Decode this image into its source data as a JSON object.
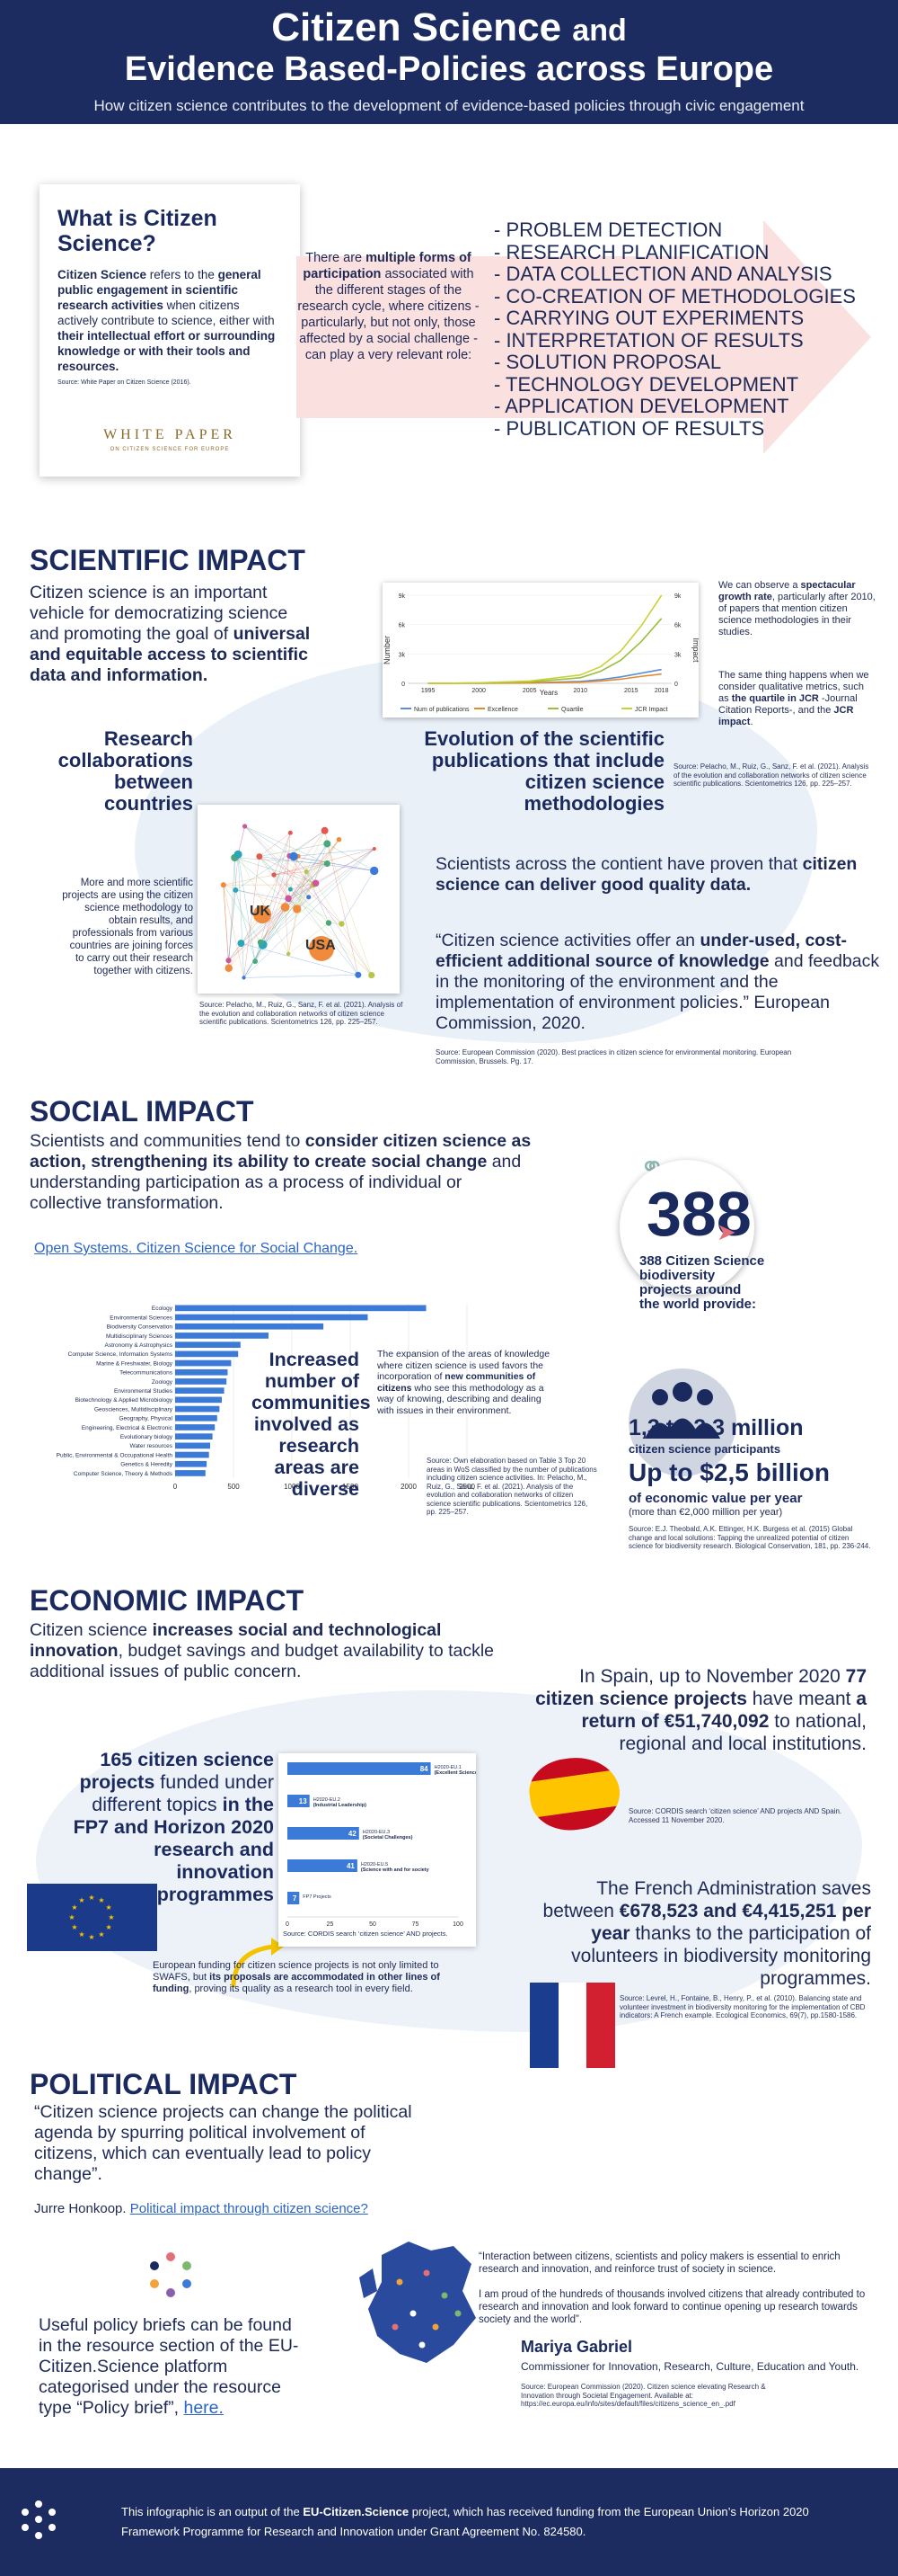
{
  "header": {
    "title_main": "Citizen Science",
    "title_and": "and",
    "title_line2": "Evidence Based-Policies across Europe",
    "subtitle": "How citizen science contributes to the development of evidence-based policies through civic engagement"
  },
  "what_is": {
    "title": "What is Citizen Science?",
    "p_bold1": "Citizen Science",
    "p_text1": " refers to the ",
    "p_bold2": "general public engagement in scientific research activities",
    "p_text2": " when citizens actively contribute to science, either with ",
    "p_bold3": "their intellectual effort or surrounding knowledge or with their tools and resources.",
    "source": "Source: White Paper on Citizen Science (2016).",
    "wp_label": "WHITE PAPER",
    "wp_sub": "ON CITIZEN SCIENCE FOR EUROPE"
  },
  "forms": {
    "t1": "There are ",
    "b1": "multiple forms of participation",
    "t2": " associated with the different stages of the research cycle, where citizens - particularly, but not only, those affected by a social challenge - can play a very relevant role:"
  },
  "stages": [
    "- PROBLEM DETECTION",
    "- RESEARCH PLANIFICATION",
    "- DATA COLLECTION AND ANALYSIS",
    "- CO-CREATION OF METHODOLOGIES",
    "- CARRYING OUT EXPERIMENTS",
    "- INTERPRETATION OF RESULTS",
    "- SOLUTION PROPOSAL",
    "- TECHNOLOGY DEVELOPMENT",
    "- APPLICATION DEVELOPMENT",
    "- PUBLICATION OF RESULTS"
  ],
  "scientific": {
    "title": "SCIENTIFIC IMPACT",
    "intro_t1": "Citizen science is an important vehicle for democratizing science and promoting the goal of ",
    "intro_b1": "universal and equitable access to scientific data and information.",
    "growth_t1": "We can observe a ",
    "growth_b1": "spectacular growth rate",
    "growth_t2": ", particularly after 2010, of papers that mention citizen science methodologies in their studies.",
    "quartile_t1": "The same thing happens when we consider qualitative metrics, such as ",
    "quartile_b1": "the quartile in JCR",
    "quartile_t2": " -Journal Citation Reports-, and the ",
    "quartile_b2": "JCR impact",
    "quartile_t3": ".",
    "growth_source": "Source: Pelacho, M., Ruiz, G., Sanz, F. et al. (2021). Analysis of the evolution and collaboration networks of citizen science scientific publications. Scientometrics 126, pp. 225–257.",
    "evolution_title": "Evolution of the scientific publications that include citizen science methodologies",
    "collab_title": "Research collaborations between countries",
    "collab_text": "More and more scientific projects are using the citizen science methodology to obtain results, and professionals from various countries are joining forces to carry out their research together with citizens.",
    "collab_source": "Source: Pelacho, M., Ruiz, G., Sanz, F. et al. (2021). Analysis of the evolution and collaboration networks of citizen science scientific publications. Scientometrics 126, pp. 225–257.",
    "net_uk": "UK",
    "net_usa": "USA",
    "proven_t1": "Scientists across the contient have proven that ",
    "proven_b1": "citizen science can deliver good quality data.",
    "quote_t1": "“Citizen science activities offer an ",
    "quote_b1": "under-used, cost-efficient additional source of knowledge",
    "quote_t2": " and feedback in the monitoring of the environment and the implementation of environment policies.” European Commission, 2020.",
    "quote_source": "Source: European Commission (2020). Best practices in citizen science for environmental monitoring. European Commission, Brussels. Pg. 17."
  },
  "social": {
    "title": "SOCIAL IMPACT",
    "intro_t1": "Scientists and communities tend to ",
    "intro_b1": "consider citizen science as action, strengthening its ability to create social change",
    "intro_t2": " and understanding participation as a process of individual or collective transformation.",
    "link": "Open Systems. Citizen Science for Social Change.",
    "increased_title": "Increased number of communities involved as research areas are diverse",
    "expansion_t1": "The expansion of the areas of knowledge where citizen science is used favors the incorporation of ",
    "expansion_b1": "new communities of citizens",
    "expansion_t2": " who see this methodology as a way of knowing, describing and dealing with issues in their environment.",
    "chart_source": "Source: Own elaboration based on Table 3 Top 20 areas in WoS classified by the number of publications including citizen science activities. In: Pelacho, M., Ruiz, G., Sanz, F. et al. (2021). Analysis of the evolution and collaboration networks of citizen science scientific publications. Scientometrics 126, pp. 225–257.",
    "big_number": "388",
    "biodiv_text": "388 Citizen Science biodiversity projects around the world provide:",
    "participants_value": "1,3 to 2,3 million",
    "participants_label": "citizen science participants",
    "value_value": "Up to $2,5 billion",
    "value_label": "of economic value per year",
    "value_note": "(more than €2,000 million per year)",
    "biodiv_source": "Source: E.J. Theobald, A.K. Ettinger, H.K. Burgess et al. (2015) Global change and local solutions: Tapping the unrealized potential of citizen science for biodiversity research. Biological Conservation, 181, pp. 236-244."
  },
  "economic": {
    "title": "ECONOMIC IMPACT",
    "intro_t1": "Citizen science ",
    "intro_b1": "increases social and technological innovation",
    "intro_t2": ", budget savings and budget availability to tackle additional issues of public concern.",
    "spain_t1": "In Spain, up to November 2020 ",
    "spain_b1": "77 citizen science projects",
    "spain_t2": " have meant ",
    "spain_b2": "a return of €51,740,092",
    "spain_t3": " to national, regional and local institutions.",
    "spain_source": "Source: CORDIS search ‘citizen science’ AND projects AND Spain. Accessed 11 November 2020.",
    "fp7_b1": "165 citizen science projects",
    "fp7_t1": " funded under different topics ",
    "fp7_b2": "in the FP7 and Horizon 2020 research and innovation programmes",
    "fp7_source": "Source: CORDIS search ‘citizen science’ AND projects.",
    "funding_t1": "European funding for citizen science projects is not only limited to SWAFS, but ",
    "funding_b1": "its proposals are accommodated in other lines of funding",
    "funding_t2": ", proving its quality as a research tool in every field.",
    "french_t1": "The French Administration saves between ",
    "french_b1": "€678,523 and €4,415,251 per year",
    "french_t2": " thanks to the participation of volunteers in biodiversity monitoring programmes.",
    "french_source": "Source: Levrel, H., Fontaine, B., Henry, P., et al. (2010). Balancing state and volunteer investment in biodiversity monitoring for the implementation of CBD indicators: A French example. Ecological Economics, 69(7), pp.1580-1586."
  },
  "political": {
    "title": "POLITICAL IMPACT",
    "quote": "“Citizen science projects can change the political agenda by spurring political involvement of citizens, which can eventually lead to policy change”.",
    "author": "Jurre Honkoop.",
    "link": "Political impact through citizen science?",
    "briefs_t1": "Useful policy briefs can be found in the resource section of the EU-Citizen.Science platform categorised under the resource type “Policy brief”, ",
    "briefs_link": "here.",
    "gabriel_q1": "“Interaction between citizens, scientists and policy makers is essential to enrich research and innovation, and reinforce trust of society in science.",
    "gabriel_q2": "I am proud of the hundreds of thousands involved citizens that already contributed to research and innovation and look forward to continue opening up research towards society and the world”.",
    "gabriel_name": "Mariya Gabriel",
    "gabriel_role": "Commissioner for Innovation, Research, Culture, Education and Youth.",
    "gabriel_source": "Source: European Commission (2020). Citizen science elevating Research & Innovation through Societal Engagement. Available at: https://ec.europa.eu/info/sites/default/files/citizens_science_en_.pdf"
  },
  "footer": {
    "t1": "This infographic is an output of the ",
    "b1": "EU-Citizen.Science",
    "t2": " project, which has received funding from the European Union’s Horizon 2020 Framework Programme for Research and Innovation under Grant Agreement No. 824580."
  },
  "colors": {
    "navy": "#1c2c60",
    "accent": "#3c7ad8",
    "pink": "#f7c9c9",
    "link": "#2a64c8"
  },
  "chart_data": [
    {
      "type": "line",
      "x_ticks": [
        "1995",
        "2000",
        "2005",
        "2010",
        "2015",
        "2018"
      ],
      "y_ticks_left": [
        "0",
        "3k",
        "6k",
        "9k"
      ],
      "y_ticks_right": [
        "0",
        "3k",
        "6k",
        "9k"
      ],
      "xlabel": "Years",
      "ylabel": "Number",
      "ylabel_right": "Impact",
      "legend": [
        "Num of publications",
        "Excellence",
        "Quartile",
        "JCR Impact"
      ],
      "x": [
        1995,
        2000,
        2005,
        2010,
        2012,
        2014,
        2016,
        2018
      ],
      "series": [
        {
          "name": "Num of publications",
          "color": "#5a8fd8",
          "values": [
            0,
            20,
            60,
            200,
            400,
            700,
            1100,
            1500
          ]
        },
        {
          "name": "Excellence",
          "color": "#e08a2c",
          "values": [
            0,
            10,
            30,
            120,
            250,
            450,
            750,
            1000
          ]
        },
        {
          "name": "Quartile",
          "color": "#9bbf3c",
          "values": [
            0,
            40,
            150,
            600,
            1300,
            2500,
            4500,
            7000
          ]
        },
        {
          "name": "JCR Impact",
          "color": "#c9d13a",
          "values": [
            0,
            60,
            250,
            900,
            1800,
            3500,
            6200,
            9500
          ]
        }
      ],
      "ylim": [
        0,
        9500
      ]
    },
    {
      "type": "bar",
      "orientation": "horizontal",
      "categories": [
        "Ecology",
        "Environmental Sciences",
        "Biodiversity Conservation",
        "Multidisciplinary Sciences",
        "Astronomy & Astrophysics",
        "Computer Science, Information Systems",
        "Marine & Freshwater, Biology",
        "Telecommunications",
        "Zoology",
        "Environmental Studies",
        "Biotechnology & Applied Microbiology",
        "Geosciences, Multidisciplinary",
        "Geography, Physical",
        "Engineering, Electrical & Electronic",
        "Evolutionary biology",
        "Water resources",
        "Public, Environmental & Occupational Health",
        "Genetics & Heredity",
        "Computer Science, Theory & Methods"
      ],
      "values": [
        2150,
        1650,
        1270,
        800,
        560,
        540,
        480,
        450,
        440,
        420,
        400,
        380,
        360,
        340,
        320,
        300,
        290,
        270,
        260
      ],
      "x_ticks": [
        "0",
        "500",
        "1000",
        "1500",
        "2000",
        "2500"
      ],
      "xlim": [
        0,
        2500
      ]
    },
    {
      "type": "bar",
      "orientation": "horizontal",
      "categories": [
        "H2020-EU.1 (Excellent Science)",
        "H2020-EU.2 (Industrial Leadership)",
        "H2020-EU.3 (Societal Challenges)",
        "H2020-EU.5 (Science with and for society (SwafS))",
        "FP7 Projects"
      ],
      "values": [
        84,
        13,
        42,
        41,
        7
      ],
      "x_ticks": [
        "0",
        "25",
        "50",
        "75",
        "100"
      ],
      "xlim": [
        0,
        100
      ]
    }
  ]
}
